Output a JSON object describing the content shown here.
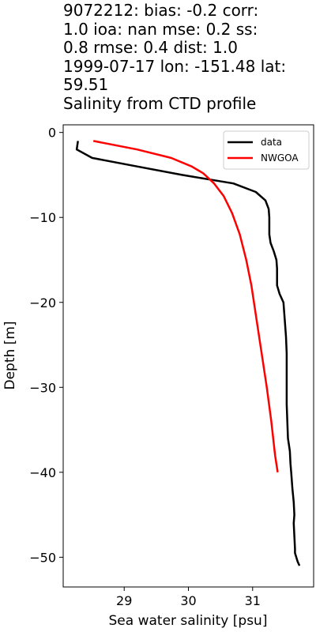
{
  "title_lines": [
    "9072212: bias: -0.2  corr:",
    "1.0  ioa: nan  mse: 0.2  ss:",
    "0.8  rmse: 0.4  dist: 1.0",
    "1999-07-17 lon: -151.48 lat:",
    "59.51",
    "Salinity from CTD profile"
  ],
  "chart_data": {
    "type": "line",
    "title": "9072212: bias: -0.2  corr: 1.0  ioa: nan  mse: 0.2  ss: 0.8  rmse: 0.4  dist: 1.0 1999-07-17 lon: -151.48 lat: 59.51 Salinity from CTD profile",
    "xlabel": "Sea water salinity [psu]",
    "ylabel": "Depth [m]",
    "xlim": [
      28.05,
      31.95
    ],
    "ylim": [
      -53.5,
      0.9
    ],
    "xticks": [
      29,
      30,
      31
    ],
    "xtick_labels": [
      "29",
      "30",
      "31"
    ],
    "yticks": [
      0,
      -10,
      -20,
      -30,
      -40,
      -50
    ],
    "ytick_labels": [
      "0",
      "−10",
      "−20",
      "−30",
      "−40",
      "−50"
    ],
    "grid": false,
    "legend_position": "top-right",
    "series": [
      {
        "name": "data",
        "color": "#000000",
        "points": [
          [
            28.28,
            -1
          ],
          [
            28.26,
            -2
          ],
          [
            28.5,
            -3
          ],
          [
            29.2,
            -4
          ],
          [
            29.9,
            -5
          ],
          [
            30.3,
            -5.5
          ],
          [
            30.7,
            -6
          ],
          [
            31.05,
            -7
          ],
          [
            31.2,
            -8
          ],
          [
            31.25,
            -9
          ],
          [
            31.26,
            -10
          ],
          [
            31.26,
            -11
          ],
          [
            31.26,
            -12
          ],
          [
            31.28,
            -13
          ],
          [
            31.33,
            -14
          ],
          [
            31.37,
            -15
          ],
          [
            31.38,
            -16
          ],
          [
            31.38,
            -18
          ],
          [
            31.42,
            -19
          ],
          [
            31.48,
            -20
          ],
          [
            31.5,
            -22
          ],
          [
            31.52,
            -24
          ],
          [
            31.53,
            -26
          ],
          [
            31.53,
            -28
          ],
          [
            31.53,
            -30
          ],
          [
            31.53,
            -32
          ],
          [
            31.54,
            -34
          ],
          [
            31.55,
            -36
          ],
          [
            31.58,
            -37.5
          ],
          [
            31.59,
            -39
          ],
          [
            31.6,
            -40
          ],
          [
            31.62,
            -42
          ],
          [
            31.64,
            -43.5
          ],
          [
            31.65,
            -45
          ],
          [
            31.64,
            -46
          ],
          [
            31.65,
            -47.5
          ],
          [
            31.66,
            -49
          ],
          [
            31.66,
            -49.5
          ],
          [
            31.7,
            -50.5
          ],
          [
            31.73,
            -51
          ]
        ]
      },
      {
        "name": "NWGOA",
        "color": "#ff0000",
        "points": [
          [
            28.52,
            -1
          ],
          [
            29.2,
            -2
          ],
          [
            29.73,
            -3
          ],
          [
            30.05,
            -4
          ],
          [
            30.23,
            -4.8
          ],
          [
            30.4,
            -6
          ],
          [
            30.55,
            -7.5
          ],
          [
            30.68,
            -9.5
          ],
          [
            30.8,
            -12
          ],
          [
            30.9,
            -15
          ],
          [
            30.98,
            -18
          ],
          [
            31.06,
            -22
          ],
          [
            31.14,
            -26
          ],
          [
            31.22,
            -30
          ],
          [
            31.29,
            -34
          ],
          [
            31.35,
            -38
          ],
          [
            31.39,
            -40
          ]
        ]
      }
    ]
  }
}
